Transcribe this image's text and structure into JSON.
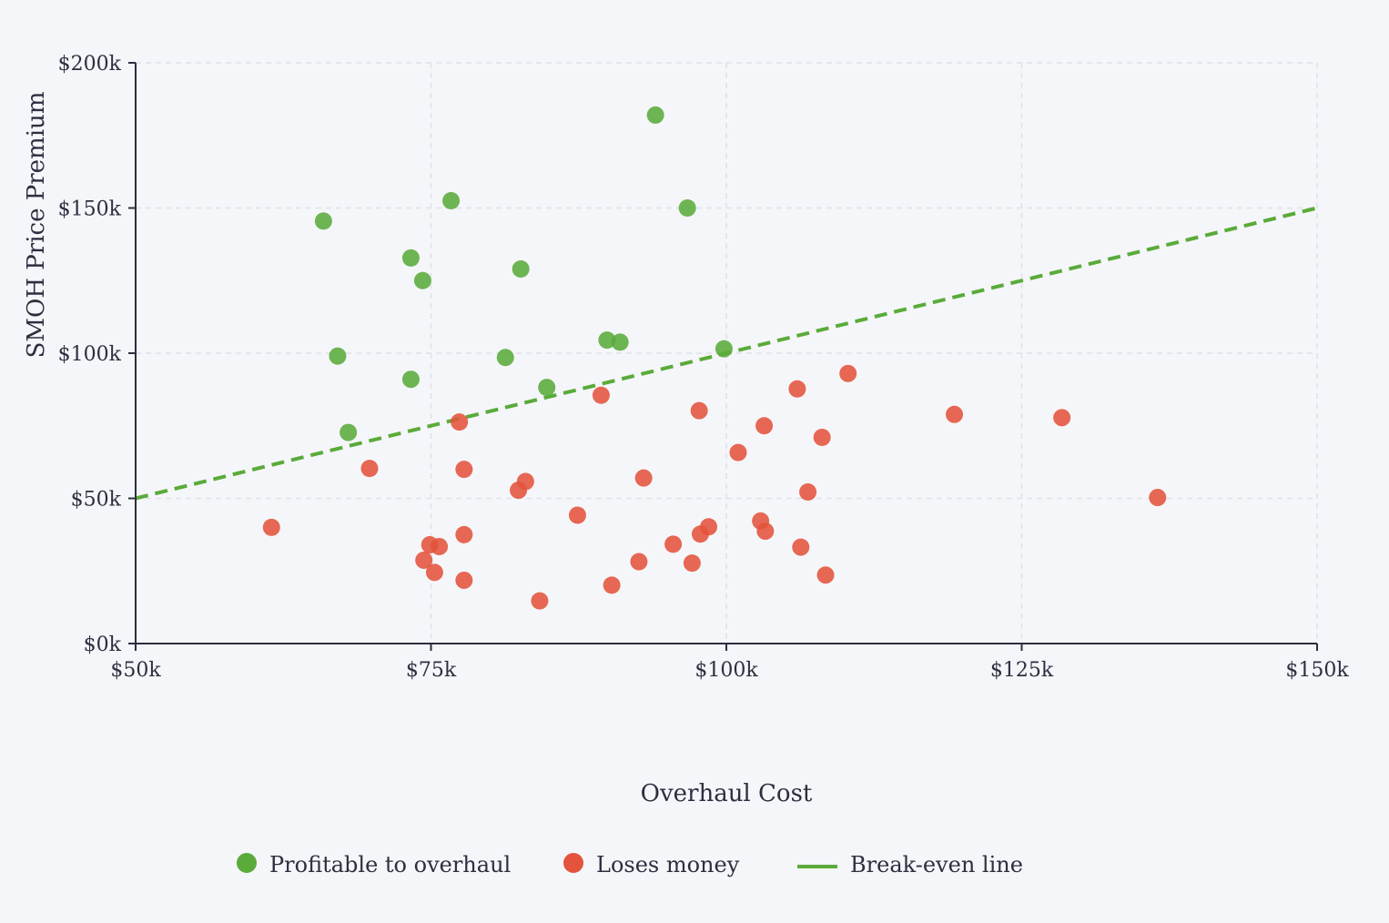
{
  "chart_data": {
    "type": "scatter",
    "title": "",
    "xlabel": "Overhaul Cost",
    "ylabel": "SMOH Price Premium",
    "xlim": [
      50000,
      150000
    ],
    "ylim": [
      0,
      200000
    ],
    "x_ticks": [
      50000,
      75000,
      100000,
      125000,
      150000
    ],
    "x_tick_labels": [
      "$50k",
      "$75k",
      "$100k",
      "$125k",
      "$150k"
    ],
    "y_ticks": [
      0,
      50000,
      100000,
      150000,
      200000
    ],
    "y_tick_labels": [
      "$0k",
      "$50k",
      "$100k",
      "$150k",
      "$200k"
    ],
    "grid": true,
    "legend_position": "bottom-center",
    "series": [
      {
        "name": "Profitable to overhaul",
        "kind": "points",
        "color": "#5aab3a",
        "points": [
          [
            94000,
            182000
          ],
          [
            76700,
            152500
          ],
          [
            96700,
            150000
          ],
          [
            65900,
            145500
          ],
          [
            73300,
            132800
          ],
          [
            82600,
            129000
          ],
          [
            74300,
            125000
          ],
          [
            89900,
            104500
          ],
          [
            91000,
            103800
          ],
          [
            99800,
            101500
          ],
          [
            67100,
            99000
          ],
          [
            81300,
            98500
          ],
          [
            73300,
            91000
          ],
          [
            84800,
            88200
          ],
          [
            68000,
            72700
          ]
        ]
      },
      {
        "name": "Loses money",
        "kind": "points",
        "color": "#e4533b",
        "points": [
          [
            110300,
            93000
          ],
          [
            106000,
            87700
          ],
          [
            89400,
            85500
          ],
          [
            97700,
            80200
          ],
          [
            119300,
            78900
          ],
          [
            128400,
            77800
          ],
          [
            77400,
            76300
          ],
          [
            103200,
            75000
          ],
          [
            108100,
            71000
          ],
          [
            101000,
            65800
          ],
          [
            69800,
            60300
          ],
          [
            77800,
            60000
          ],
          [
            93000,
            57000
          ],
          [
            83000,
            55800
          ],
          [
            82400,
            52800
          ],
          [
            106900,
            52200
          ],
          [
            136500,
            50300
          ],
          [
            87400,
            44200
          ],
          [
            102900,
            42200
          ],
          [
            98500,
            40200
          ],
          [
            61500,
            40000
          ],
          [
            103300,
            38700
          ],
          [
            97800,
            37700
          ],
          [
            77800,
            37500
          ],
          [
            95500,
            34200
          ],
          [
            74900,
            34000
          ],
          [
            75700,
            33400
          ],
          [
            106300,
            33200
          ],
          [
            74400,
            28700
          ],
          [
            92600,
            28200
          ],
          [
            97100,
            27700
          ],
          [
            75300,
            24500
          ],
          [
            108400,
            23600
          ],
          [
            77800,
            21800
          ],
          [
            90300,
            20100
          ],
          [
            84200,
            14700
          ]
        ]
      },
      {
        "name": "Break-even line",
        "kind": "line",
        "color": "#5aab3a",
        "x": [
          50000,
          150000
        ],
        "y": [
          50000,
          150000
        ]
      }
    ]
  }
}
